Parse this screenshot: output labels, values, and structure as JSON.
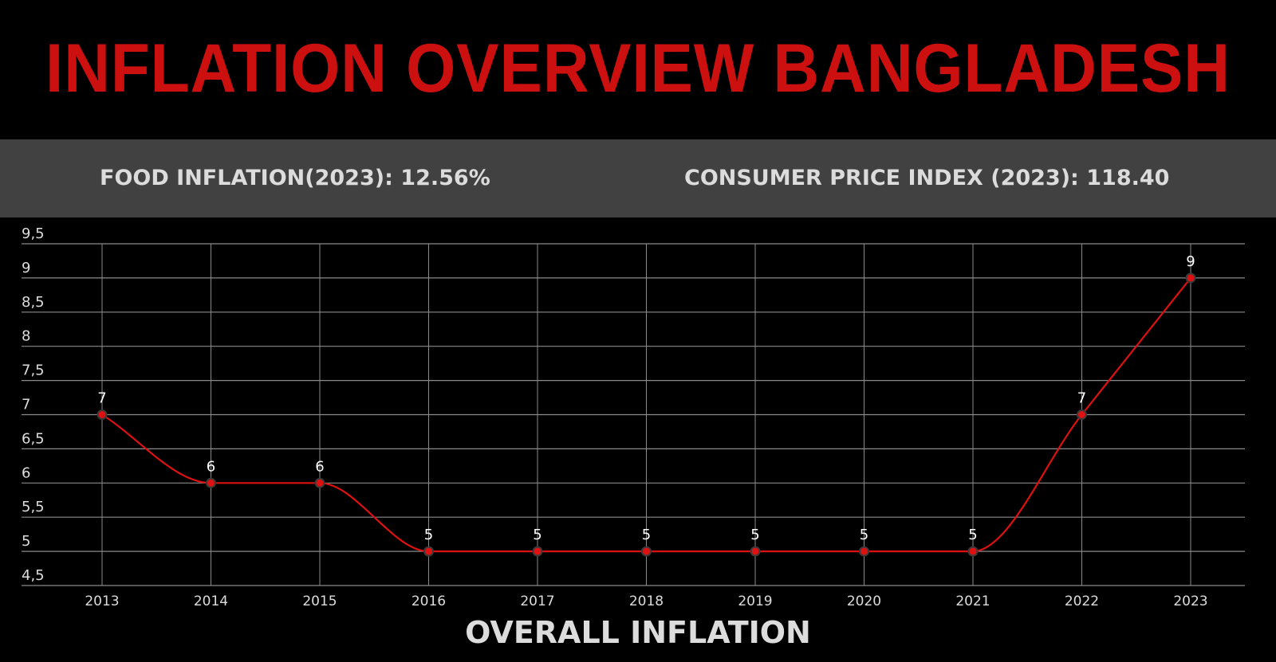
{
  "header": {
    "title": "INFLATION OVERVIEW BANGLADESH"
  },
  "stats": {
    "food_inflation": "FOOD INFLATION(2023): 12.56%",
    "cpi": "CONSUMER PRICE INDEX (2023): 118.40"
  },
  "colors": {
    "title": "#cc1010",
    "line": "#dd1111",
    "point_fill": "#dd1111",
    "point_stroke": "#3a3a3a",
    "grid": "#8a8a8a",
    "stats_bg": "#414141",
    "text": "#dcdcdc"
  },
  "chart_data": {
    "type": "line",
    "title": "OVERALL INFLATION",
    "xlabel": "",
    "ylabel": "",
    "categories": [
      "2013",
      "2014",
      "2015",
      "2016",
      "2017",
      "2018",
      "2019",
      "2020",
      "2021",
      "2022",
      "2023"
    ],
    "series": [
      {
        "name": "Overall Inflation",
        "values": [
          7,
          6,
          6,
          5,
          5,
          5,
          5,
          5,
          5,
          7,
          9
        ],
        "data_labels": [
          "7",
          "6",
          "6",
          "5",
          "5",
          "5",
          "5",
          "5",
          "5",
          "7",
          "9"
        ]
      }
    ],
    "ylim": [
      4.5,
      9.5
    ],
    "yticks": [
      4.5,
      5,
      5.5,
      6,
      6.5,
      7,
      7.5,
      8,
      8.5,
      9,
      9.5
    ],
    "ytick_labels": [
      "4,5",
      "5",
      "5,5",
      "6",
      "6,5",
      "7",
      "7,5",
      "8",
      "8,5",
      "9",
      "9,5"
    ],
    "grid": true,
    "legend": "none",
    "interpolation": "monotone"
  },
  "chart": {
    "axis_title": "OVERALL INFLATION"
  }
}
